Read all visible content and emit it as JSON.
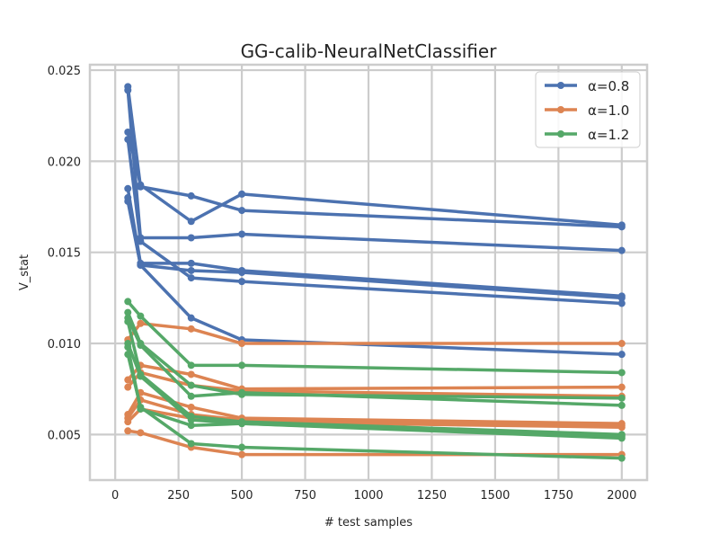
{
  "chart_data": {
    "type": "line",
    "title": "GG-calib-NeuralNetClassifier",
    "xlabel": "# test samples",
    "ylabel": "V_stat",
    "xlim": [
      -100,
      2100
    ],
    "ylim": [
      0.0025,
      0.0253
    ],
    "xticks": [
      0,
      250,
      500,
      750,
      1000,
      1250,
      1500,
      1750,
      2000
    ],
    "xtick_labels": [
      "0",
      "250",
      "500",
      "750",
      "1000",
      "1250",
      "1500",
      "1750",
      "2000"
    ],
    "yticks": [
      0.005,
      0.01,
      0.015,
      0.02,
      0.025
    ],
    "ytick_labels": [
      "0.005",
      "0.010",
      "0.015",
      "0.020",
      "0.025"
    ],
    "grid": true,
    "legend_position": "upper right",
    "x": [
      50,
      100,
      300,
      500,
      2000
    ],
    "groups": [
      {
        "name": "α=0.8",
        "color": "#4c72b0",
        "lines": [
          [
            0.0241,
            0.0186,
            0.0181,
            0.0173,
            0.0164
          ],
          [
            0.0239,
            0.0158,
            0.0158,
            0.016,
            0.0151
          ],
          [
            0.0216,
            0.0187,
            0.0167,
            0.0182,
            0.0165
          ],
          [
            0.0212,
            0.0156,
            0.0136,
            0.0134,
            0.0122
          ],
          [
            0.0185,
            0.0144,
            0.0144,
            0.014,
            0.0126
          ],
          [
            0.018,
            0.0143,
            0.014,
            0.0139,
            0.0125
          ],
          [
            0.0178,
            0.0143,
            0.0114,
            0.0102,
            0.0094
          ]
        ]
      },
      {
        "name": "α=1.0",
        "color": "#dd8452",
        "lines": [
          [
            0.0102,
            0.0111,
            0.0108,
            0.01,
            0.01
          ],
          [
            0.008,
            0.0088,
            0.0083,
            0.0075,
            0.0076
          ],
          [
            0.0076,
            0.0084,
            0.0077,
            0.0074,
            0.0071
          ],
          [
            0.0061,
            0.0073,
            0.0065,
            0.0059,
            0.0056
          ],
          [
            0.0059,
            0.0069,
            0.0061,
            0.0058,
            0.0055
          ],
          [
            0.0057,
            0.0064,
            0.0059,
            0.0057,
            0.0054
          ],
          [
            0.0052,
            0.0051,
            0.0043,
            0.0039,
            0.0039
          ]
        ]
      },
      {
        "name": "α=1.2",
        "color": "#55a868",
        "lines": [
          [
            0.0123,
            0.0115,
            0.0088,
            0.0088,
            0.0084
          ],
          [
            0.0117,
            0.01,
            0.0077,
            0.0072,
            0.007
          ],
          [
            0.0114,
            0.0099,
            0.0071,
            0.0073,
            0.0066
          ],
          [
            0.0112,
            0.0083,
            0.006,
            0.0057,
            0.005
          ],
          [
            0.01,
            0.0082,
            0.0058,
            0.0056,
            0.0049
          ],
          [
            0.0098,
            0.0064,
            0.0055,
            0.0056,
            0.0048
          ],
          [
            0.0094,
            0.0065,
            0.0045,
            0.0043,
            0.0037
          ]
        ]
      }
    ]
  }
}
